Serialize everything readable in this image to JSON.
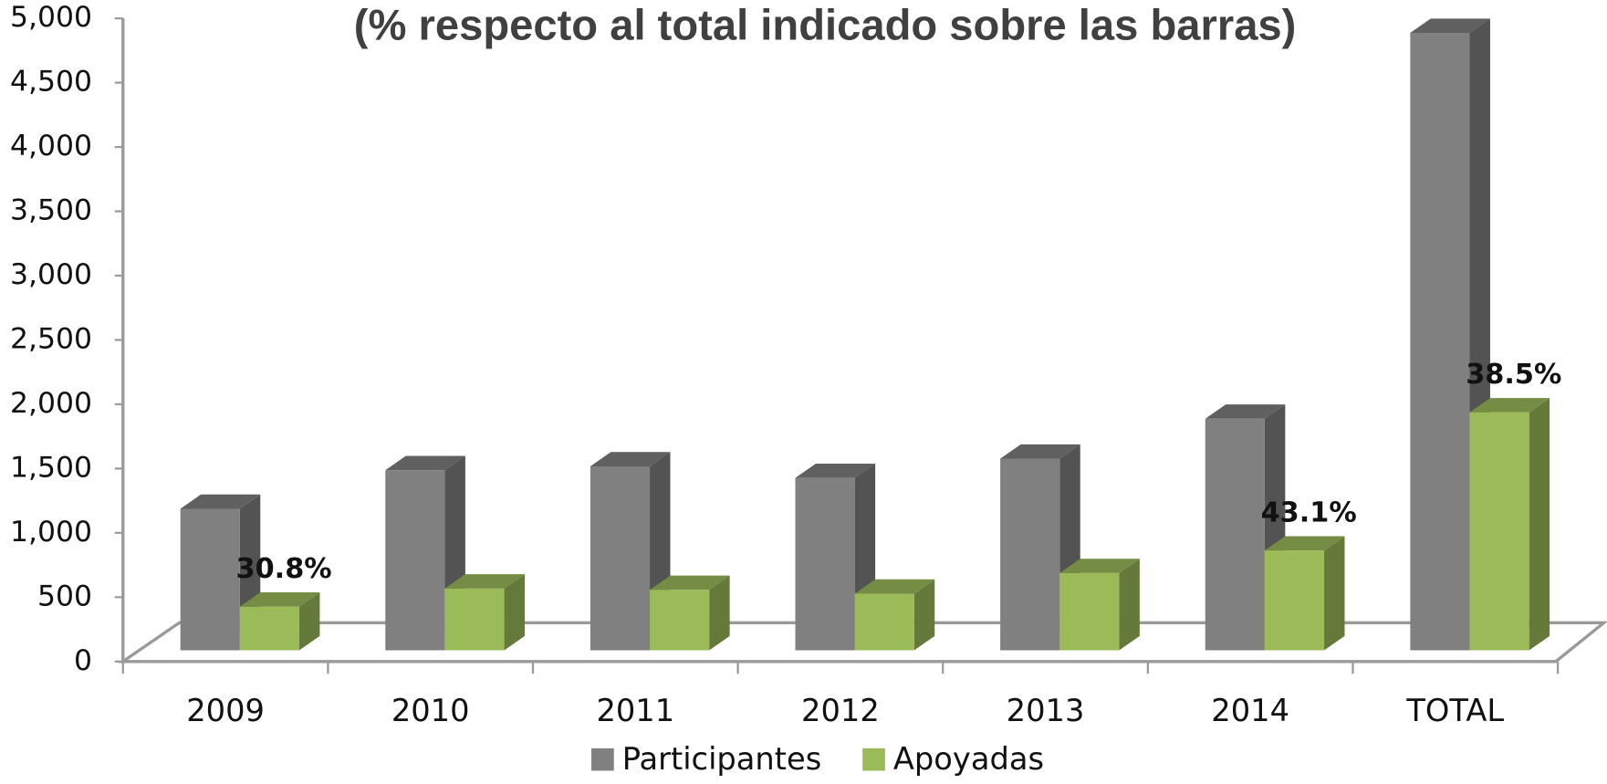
{
  "chart_data": {
    "type": "bar3d",
    "title": "(% respecto al total indicado sobre las barras)",
    "categories": [
      "2009",
      "2010",
      "2011",
      "2012",
      "2013",
      "2014",
      "TOTAL"
    ],
    "series": [
      {
        "name": "Participantes",
        "color": "#808080",
        "values": [
          1100,
          1400,
          1430,
          1340,
          1490,
          1800,
          4800
        ]
      },
      {
        "name": "Apoyadas",
        "color": "#9bbb59",
        "values": [
          339,
          480,
          470,
          440,
          600,
          776,
          1850
        ]
      }
    ],
    "annotations": [
      "30.8%",
      null,
      null,
      null,
      null,
      "43.1%",
      "38.5%"
    ],
    "ylim": [
      0,
      5000
    ],
    "yticks": [
      0,
      500,
      {
        "value": 1000,
        "label": "1,000"
      },
      {
        "value": 1500,
        "label": "1,500"
      },
      {
        "value": 2000,
        "label": "2,000"
      },
      {
        "value": 2500,
        "label": "2,500"
      },
      {
        "value": 3000,
        "label": "3,000"
      },
      {
        "value": 3500,
        "label": "3,500"
      },
      {
        "value": 4000,
        "label": "4,000"
      },
      {
        "value": 4500,
        "label": "4,500"
      },
      {
        "value": 5000,
        "label": "5,000"
      }
    ],
    "legend": "bottom"
  }
}
